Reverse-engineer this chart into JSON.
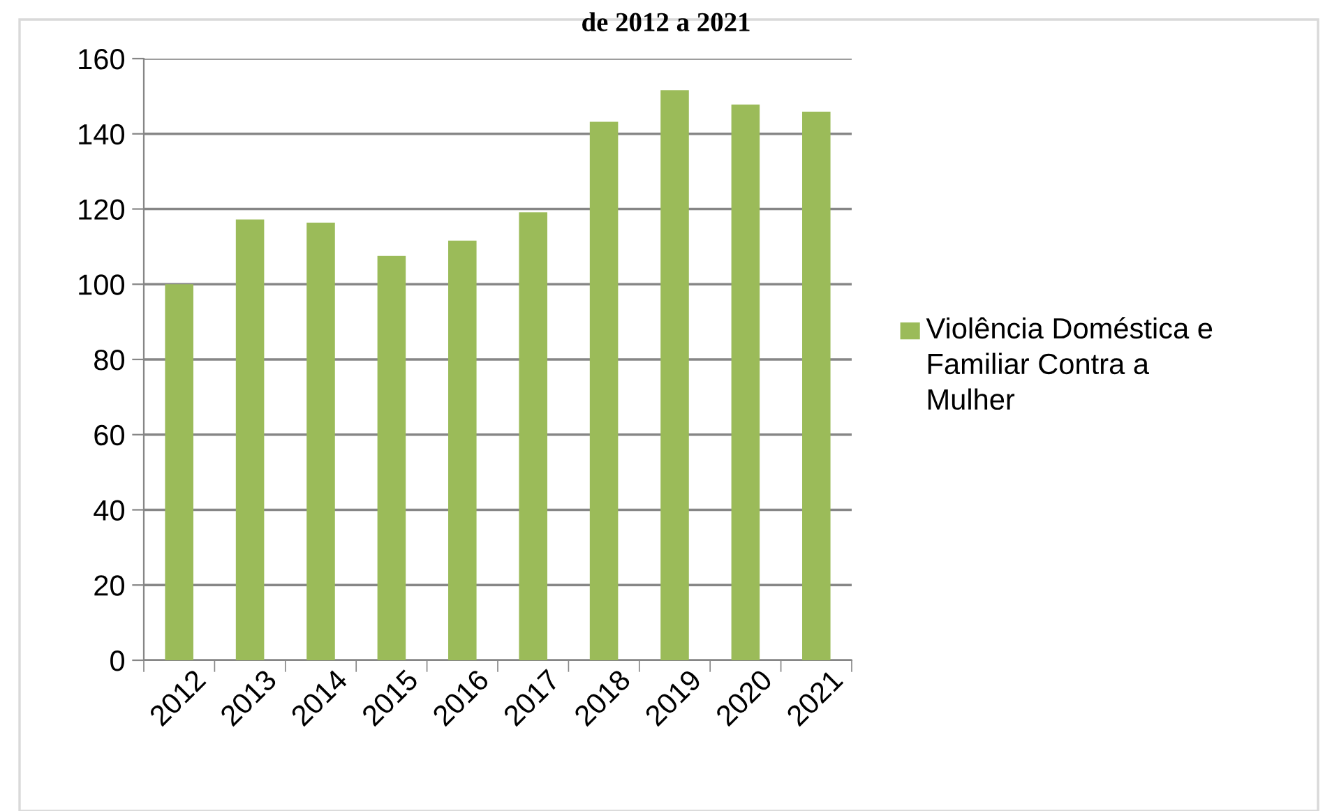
{
  "chart_data": {
    "type": "bar",
    "title": "de 2012 a 2021",
    "categories": [
      "2012",
      "2013",
      "2014",
      "2015",
      "2016",
      "2017",
      "2018",
      "2019",
      "2020",
      "2021"
    ],
    "series": [
      {
        "name": "Violência Doméstica e Familiar Contra a Mulher",
        "color": "#9bbb59",
        "values": [
          100,
          117.2,
          116.4,
          107.5,
          111.6,
          119.1,
          143.2,
          151.6,
          147.8,
          145.9
        ]
      }
    ],
    "ylim": [
      0,
      160
    ],
    "yticks": [
      0,
      20,
      40,
      60,
      80,
      100,
      120,
      140,
      160
    ],
    "grid": "y",
    "legend": "right"
  }
}
